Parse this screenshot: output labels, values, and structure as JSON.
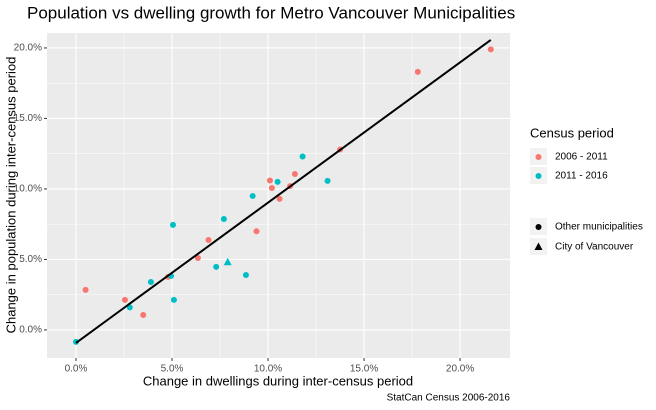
{
  "chart_data": {
    "type": "scatter",
    "title": "Population vs dwelling growth for Metro Vancouver Municipalities",
    "x_label": "Change in dwellings during inter-census period",
    "y_label": "Change in population during inter-census period",
    "caption": "StatCan Census 2006-2016",
    "xlim": [
      -1.51,
      22.6
    ],
    "ylim": [
      -1.99,
      21.06
    ],
    "xticks": [
      {
        "value": 0,
        "label": "0.0%"
      },
      {
        "value": 5,
        "label": "5.0%"
      },
      {
        "value": 10,
        "label": "10.0%"
      },
      {
        "value": 15,
        "label": "15.0%"
      },
      {
        "value": 20,
        "label": "20.0%"
      }
    ],
    "yticks": [
      {
        "value": 0,
        "label": "0.0%"
      },
      {
        "value": 5,
        "label": "5.0%"
      },
      {
        "value": 10,
        "label": "10.0%"
      },
      {
        "value": 15,
        "label": "15.0%"
      },
      {
        "value": 20,
        "label": "20.0%"
      }
    ],
    "grid": true,
    "legend_title": "Census period",
    "series": [
      {
        "name": "2006 - 2011",
        "color": "#F8766D",
        "x": [
          0.5,
          2.55,
          3.5,
          4.8,
          6.35,
          6.9,
          9.4,
          10.1,
          10.2,
          10.6,
          11.15,
          11.4,
          13.75,
          17.8,
          21.6
        ],
        "values": [
          2.84,
          2.13,
          1.06,
          3.76,
          5.1,
          6.38,
          7.0,
          10.6,
          10.07,
          9.3,
          10.2,
          11.06,
          12.8,
          18.3,
          19.9
        ],
        "shapes": [
          "circle",
          "circle",
          "circle",
          "circle",
          "circle",
          "circle",
          "circle",
          "circle",
          "circle",
          "circle",
          "circle",
          "circle",
          "circle",
          "circle",
          "circle"
        ]
      },
      {
        "name": "2011 - 2016",
        "color": "#00BFC4",
        "x": [
          0.0,
          2.8,
          3.9,
          4.95,
          5.05,
          5.1,
          7.3,
          7.7,
          8.85,
          9.2,
          10.5,
          11.8,
          13.1,
          7.9
        ],
        "values": [
          -0.85,
          1.6,
          3.4,
          3.83,
          7.45,
          2.13,
          4.47,
          7.87,
          3.9,
          9.5,
          10.5,
          12.3,
          10.57,
          4.8
        ],
        "shapes": [
          "circle",
          "circle",
          "circle",
          "circle",
          "circle",
          "circle",
          "circle",
          "circle",
          "circle",
          "circle",
          "circle",
          "circle",
          "circle",
          "triangle"
        ]
      }
    ],
    "shape_legend": {
      "labels": [
        "Other municipalities",
        "City of Vancouver"
      ],
      "shapes": [
        "circle",
        "triangle"
      ]
    },
    "fit_line": {
      "color": "#000000",
      "x": [
        0.0,
        21.6
      ],
      "y": [
        -0.92,
        20.57
      ]
    }
  }
}
